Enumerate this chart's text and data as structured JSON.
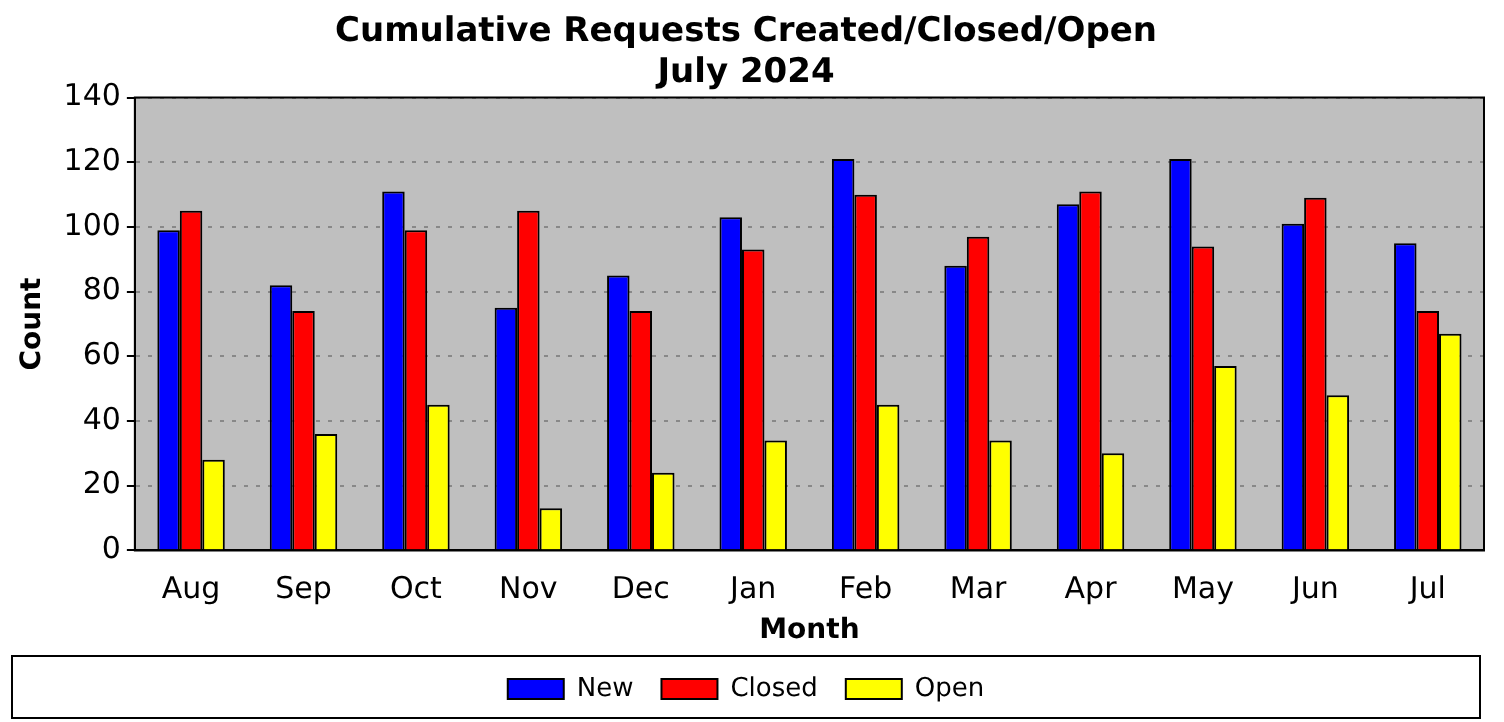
{
  "chart_data": {
    "type": "bar",
    "title": "Cumulative Requests Created/Closed/Open",
    "subtitle": "July 2024",
    "xlabel": "Month",
    "ylabel": "Count",
    "categories": [
      "Aug",
      "Sep",
      "Oct",
      "Nov",
      "Dec",
      "Jan",
      "Feb",
      "Mar",
      "Apr",
      "May",
      "Jun",
      "Jul"
    ],
    "series": [
      {
        "name": "New",
        "color": "#0000ff",
        "values": [
          99,
          82,
          111,
          75,
          85,
          103,
          121,
          88,
          107,
          121,
          101,
          95
        ]
      },
      {
        "name": "Closed",
        "color": "#ff0000",
        "values": [
          105,
          74,
          99,
          105,
          74,
          93,
          110,
          97,
          111,
          94,
          109,
          74
        ]
      },
      {
        "name": "Open",
        "color": "#ffff00",
        "values": [
          28,
          36,
          45,
          13,
          24,
          34,
          45,
          34,
          30,
          57,
          48,
          67
        ]
      }
    ],
    "ylim": [
      0,
      140
    ],
    "yticks": [
      0,
      20,
      40,
      60,
      80,
      100,
      120,
      140
    ],
    "grid": "y",
    "legend": "bottom"
  }
}
